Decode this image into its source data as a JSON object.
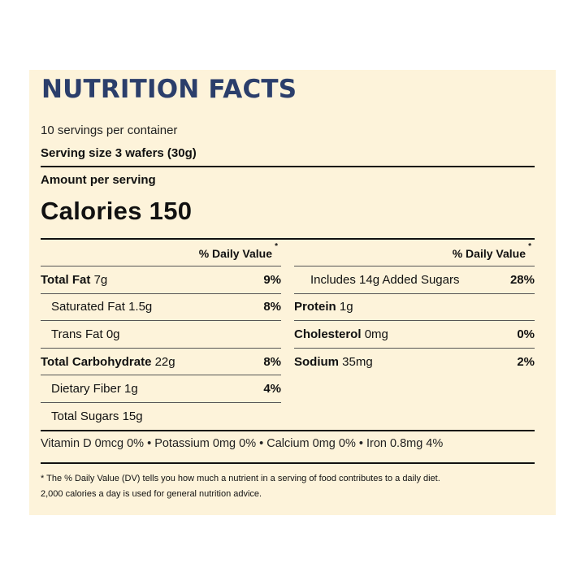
{
  "title": "NUTRITION FACTS",
  "servings_per_container": "10 servings per container",
  "serving_size": "Serving size 3 wafers (30g)",
  "amount_per_serving": "Amount per serving",
  "calories": "Calories 150",
  "dv_header": "% Daily Value",
  "dv_star": "*",
  "left_rows": [
    {
      "label": "Total Fat",
      "value": "7g",
      "pct": "9%"
    },
    {
      "label": "Saturated Fat",
      "value": "1.5g",
      "pct": "8%"
    },
    {
      "label": "Trans Fat",
      "value": "0g",
      "pct": ""
    },
    {
      "label": "Total Carbohydrate",
      "value": "22g",
      "pct": "8%"
    },
    {
      "label": "Dietary Fiber",
      "value": "1g",
      "pct": "4%"
    },
    {
      "label": "Total Sugars",
      "value": "15g",
      "pct": ""
    }
  ],
  "right_rows": [
    {
      "label": "Includes 14g Added Sugars",
      "value": "",
      "pct": "28%"
    },
    {
      "label": "Protein",
      "value": "1g",
      "pct": ""
    },
    {
      "label": "Cholesterol",
      "value": "0mg",
      "pct": "0%"
    },
    {
      "label": "Sodium",
      "value": "35mg",
      "pct": "2%"
    }
  ],
  "vitamins": "Vitamin D 0mcg 0% • Potassium 0mg 0% • Calcium 0mg 0% • Iron 0.8mg 4%",
  "footnote_line1": "* The % Daily Value (DV) tells you how much a nutrient in a serving of food contributes to a daily diet.",
  "footnote_line2": "2,000 calories a day is used for general nutrition advice.",
  "colors": {
    "title": "#2b3e6b",
    "panel_bg": "#fdf3da",
    "rule": "#111111"
  }
}
